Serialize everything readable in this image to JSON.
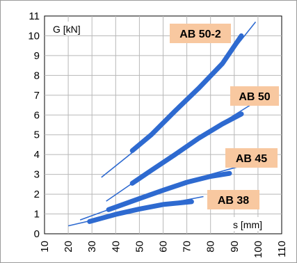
{
  "chart_data": {
    "type": "line",
    "title": "",
    "xlabel": "s [mm]",
    "ylabel": "G [kN]",
    "xlim": [
      10,
      110
    ],
    "ylim": [
      0,
      11
    ],
    "x_ticks": [
      "10",
      "20",
      "30",
      "40",
      "50",
      "60",
      "70",
      "80",
      "90",
      "100",
      "110"
    ],
    "y_ticks": [
      "0",
      "1",
      "2",
      "3",
      "4",
      "5",
      "6",
      "7",
      "8",
      "9",
      "10",
      "11"
    ],
    "grid": true,
    "line_color": "#2e6ad0",
    "label_bg_color": "#f8c8a0",
    "series": [
      {
        "name": "AB 38",
        "trend": [
          [
            20,
            0.4
          ],
          [
            30,
            0.68
          ],
          [
            40,
            0.98
          ],
          [
            50,
            1.25
          ],
          [
            60,
            1.5
          ],
          [
            70,
            1.72
          ],
          [
            77,
            1.88
          ]
        ],
        "range": [
          [
            29,
            0.62
          ],
          [
            40,
            0.98
          ],
          [
            50,
            1.25
          ],
          [
            60,
            1.48
          ],
          [
            72,
            1.62
          ]
        ]
      },
      {
        "name": "AB 45",
        "trend": [
          [
            25,
            0.7
          ],
          [
            40,
            1.35
          ],
          [
            50,
            1.78
          ],
          [
            60,
            2.2
          ],
          [
            70,
            2.6
          ],
          [
            80,
            3.0
          ],
          [
            92,
            3.4
          ]
        ],
        "range": [
          [
            37,
            1.22
          ],
          [
            50,
            1.78
          ],
          [
            60,
            2.2
          ],
          [
            70,
            2.6
          ],
          [
            80,
            2.9
          ],
          [
            88,
            3.05
          ]
        ]
      },
      {
        "name": "AB 50",
        "trend": [
          [
            36,
            1.65
          ],
          [
            47,
            2.55
          ],
          [
            55,
            3.2
          ],
          [
            65,
            4.0
          ],
          [
            75,
            4.82
          ],
          [
            85,
            5.62
          ],
          [
            97,
            6.52
          ]
        ],
        "range": [
          [
            47,
            2.55
          ],
          [
            55,
            3.2
          ],
          [
            65,
            4.0
          ],
          [
            75,
            4.82
          ],
          [
            85,
            5.55
          ],
          [
            93,
            6.05
          ]
        ]
      },
      {
        "name": "AB 50-2",
        "trend": [
          [
            34,
            2.85
          ],
          [
            47,
            4.1
          ],
          [
            55,
            5.0
          ],
          [
            65,
            6.2
          ],
          [
            75,
            7.35
          ],
          [
            85,
            8.6
          ],
          [
            99,
            10.7
          ]
        ],
        "range": [
          [
            47,
            4.2
          ],
          [
            55,
            5.0
          ],
          [
            65,
            6.2
          ],
          [
            75,
            7.35
          ],
          [
            85,
            8.6
          ],
          [
            93,
            10.0
          ]
        ]
      }
    ]
  }
}
